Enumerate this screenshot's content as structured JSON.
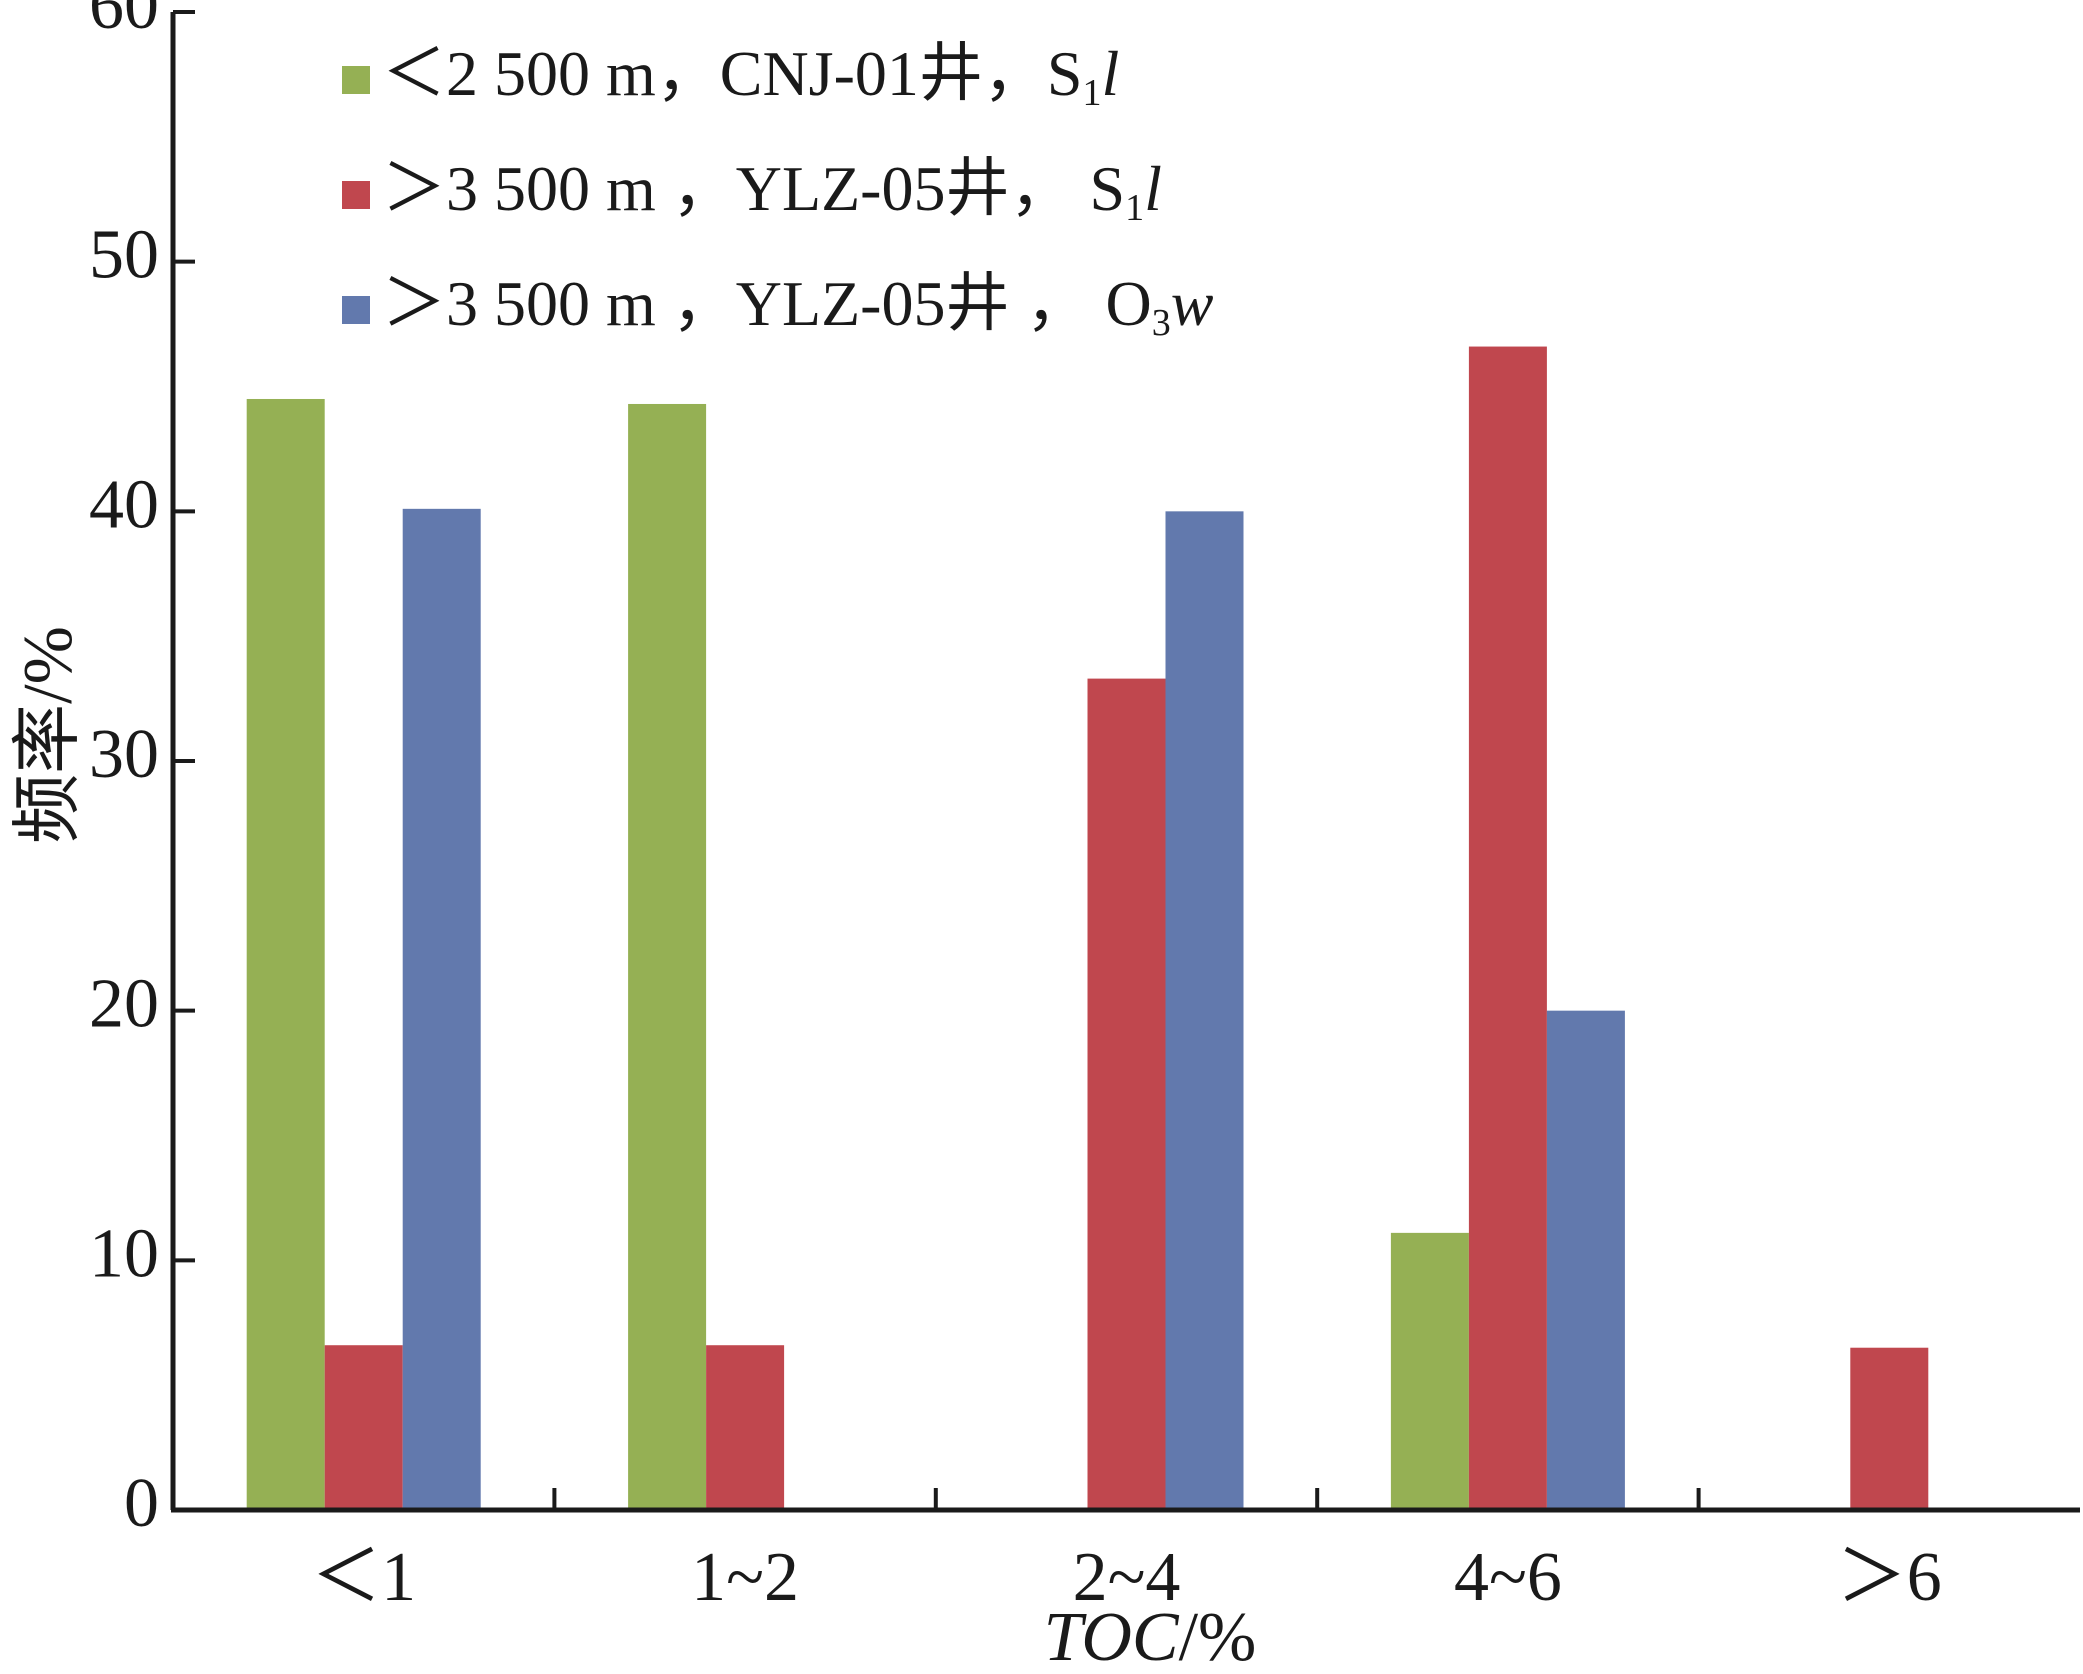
{
  "chart_data": {
    "type": "bar",
    "categories": [
      "＜1",
      "1~2",
      "2~4",
      "4~6",
      "＞6"
    ],
    "series": [
      {
        "name": "＜2 500 m，CNJ-01井，S1l",
        "legend": {
          "prefix": "＜2 500 m，CNJ-01井，S",
          "sub": "1",
          "suffix": "l"
        },
        "color": "#95b054",
        "values": [
          44.5,
          44.3,
          0,
          11.1,
          0
        ]
      },
      {
        "name": "＞3 500 m，YLZ-05井， S1l",
        "legend": {
          "prefix": "＞3 500 m ，YLZ-05井， S",
          "sub": "1",
          "suffix": "l"
        },
        "color": "#c0474e",
        "values": [
          6.6,
          6.6,
          33.3,
          46.6,
          6.5
        ]
      },
      {
        "name": "＞3 500 m，YLZ-05井，O3w",
        "legend": {
          "prefix": "＞3 500 m ，YLZ-05井 ， O",
          "sub": "3",
          "suffix": "w"
        },
        "color": "#6279ad",
        "values": [
          40.1,
          0,
          40.0,
          20.0,
          0
        ]
      }
    ],
    "xlabel": {
      "italic": "TOC",
      "unit": "/%"
    },
    "ylabel": "频率/%",
    "ylim": [
      0,
      60
    ],
    "yticks": [
      0,
      10,
      20,
      30,
      40,
      50,
      60
    ],
    "grid": false,
    "legend_position": "top-left"
  }
}
